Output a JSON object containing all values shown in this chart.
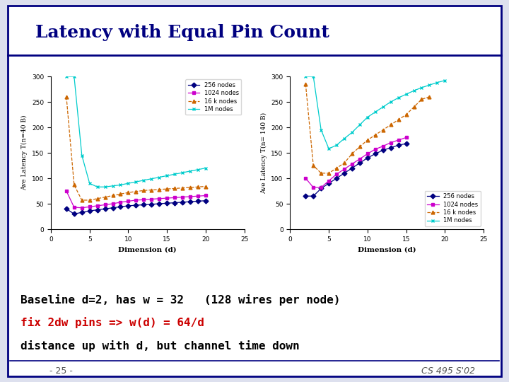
{
  "title": "Latency with Equal Pin Count",
  "title_color": "#000080",
  "slide_bg": "#dde0ee",
  "plot_bg": "white",
  "left_plot": {
    "ylabel": "Ave Latency T(n=40 B)",
    "xlabel": "Dimension (d)",
    "xlim": [
      0,
      25
    ],
    "ylim": [
      0,
      300
    ],
    "yticks": [
      0,
      50,
      100,
      150,
      200,
      250,
      300
    ],
    "xticks": [
      0,
      5,
      10,
      15,
      20,
      25
    ],
    "series": [
      {
        "label": "256 nodes",
        "color": "#000080",
        "marker": "D",
        "linestyle": "-",
        "x": [
          2,
          3,
          4,
          5,
          6,
          7,
          8,
          9,
          10,
          11,
          12,
          13,
          14,
          15,
          16,
          17,
          18,
          19,
          20
        ],
        "y": [
          40,
          30,
          33,
          36,
          38,
          40,
          42,
          44,
          46,
          47,
          48,
          49,
          50,
          51,
          52,
          53,
          54,
          55,
          56
        ]
      },
      {
        "label": "1024 nodes",
        "color": "#cc00cc",
        "marker": "s",
        "linestyle": "-",
        "x": [
          2,
          3,
          4,
          5,
          6,
          7,
          8,
          9,
          10,
          11,
          12,
          13,
          14,
          15,
          16,
          17,
          18,
          19,
          20
        ],
        "y": [
          75,
          43,
          42,
          44,
          46,
          48,
          50,
          53,
          55,
          57,
          58,
          59,
          60,
          61,
          62,
          63,
          64,
          65,
          66
        ]
      },
      {
        "label": "16 k nodes",
        "color": "#cc6600",
        "marker": "^",
        "linestyle": "--",
        "x": [
          2,
          3,
          4,
          5,
          6,
          7,
          8,
          9,
          10,
          11,
          12,
          13,
          14,
          15,
          16,
          17,
          18,
          19,
          20
        ],
        "y": [
          260,
          87,
          57,
          57,
          60,
          63,
          66,
          69,
          72,
          74,
          76,
          77,
          78,
          79,
          80,
          81,
          82,
          83,
          84
        ]
      },
      {
        "label": "1M nodes",
        "color": "#00cccc",
        "marker": "x",
        "linestyle": "-",
        "x": [
          2,
          3,
          4,
          5,
          6,
          7,
          8,
          9,
          10,
          11,
          12,
          13,
          14,
          15,
          16,
          17,
          18,
          19,
          20
        ],
        "y": [
          300,
          300,
          145,
          90,
          83,
          83,
          85,
          87,
          90,
          93,
          96,
          99,
          102,
          105,
          108,
          111,
          114,
          117,
          120
        ]
      }
    ]
  },
  "right_plot": {
    "ylabel": "Ave Latency T(n= 140 B)",
    "xlabel": "Dimension (d)",
    "xlim": [
      0,
      25
    ],
    "ylim": [
      0,
      300
    ],
    "yticks": [
      0,
      50,
      100,
      150,
      200,
      250,
      300
    ],
    "xticks": [
      0,
      5,
      10,
      15,
      20,
      25
    ],
    "series": [
      {
        "label": "256 nodes",
        "color": "#000080",
        "marker": "D",
        "linestyle": "-",
        "x": [
          2,
          3,
          4,
          5,
          6,
          7,
          8,
          9,
          10,
          11,
          12,
          13,
          14,
          15
        ],
        "y": [
          65,
          65,
          80,
          90,
          100,
          110,
          120,
          130,
          140,
          148,
          155,
          160,
          165,
          168
        ]
      },
      {
        "label": "1024 nodes",
        "color": "#cc00cc",
        "marker": "s",
        "linestyle": "-",
        "x": [
          2,
          3,
          4,
          5,
          6,
          7,
          8,
          9,
          10,
          11,
          12,
          13,
          14,
          15
        ],
        "y": [
          100,
          82,
          82,
          95,
          108,
          118,
          128,
          138,
          148,
          157,
          163,
          170,
          175,
          180
        ]
      },
      {
        "label": "16 k nodes",
        "color": "#cc6600",
        "marker": "^",
        "linestyle": "--",
        "x": [
          2,
          3,
          4,
          5,
          6,
          7,
          8,
          9,
          10,
          11,
          12,
          13,
          14,
          15,
          16,
          17,
          18
        ],
        "y": [
          285,
          125,
          110,
          110,
          120,
          130,
          148,
          162,
          175,
          185,
          195,
          205,
          215,
          225,
          240,
          255,
          260
        ]
      },
      {
        "label": "1M nodes",
        "color": "#00cccc",
        "marker": "x",
        "linestyle": "-",
        "x": [
          2,
          3,
          4,
          5,
          6,
          7,
          8,
          9,
          10,
          11,
          12,
          13,
          14,
          15,
          16,
          17,
          18,
          19,
          20
        ],
        "y": [
          300,
          300,
          195,
          158,
          165,
          178,
          190,
          205,
          220,
          230,
          240,
          250,
          258,
          265,
          272,
          278,
          283,
          288,
          292
        ]
      }
    ]
  },
  "text_lines": [
    {
      "text": "Baseline d=2, has w = 32   (128 wires per node)",
      "color": "#000000",
      "bold": true,
      "size": 11.5
    },
    {
      "text": "fix 2dw pins => w(d) = 64/d",
      "color": "#cc0000",
      "bold": true,
      "size": 11.5
    },
    {
      "text": "distance up with d, but channel time down",
      "color": "#000000",
      "bold": true,
      "size": 11.5
    }
  ],
  "footer_left": "- 25 -",
  "footer_right": "CS 495 S'02"
}
